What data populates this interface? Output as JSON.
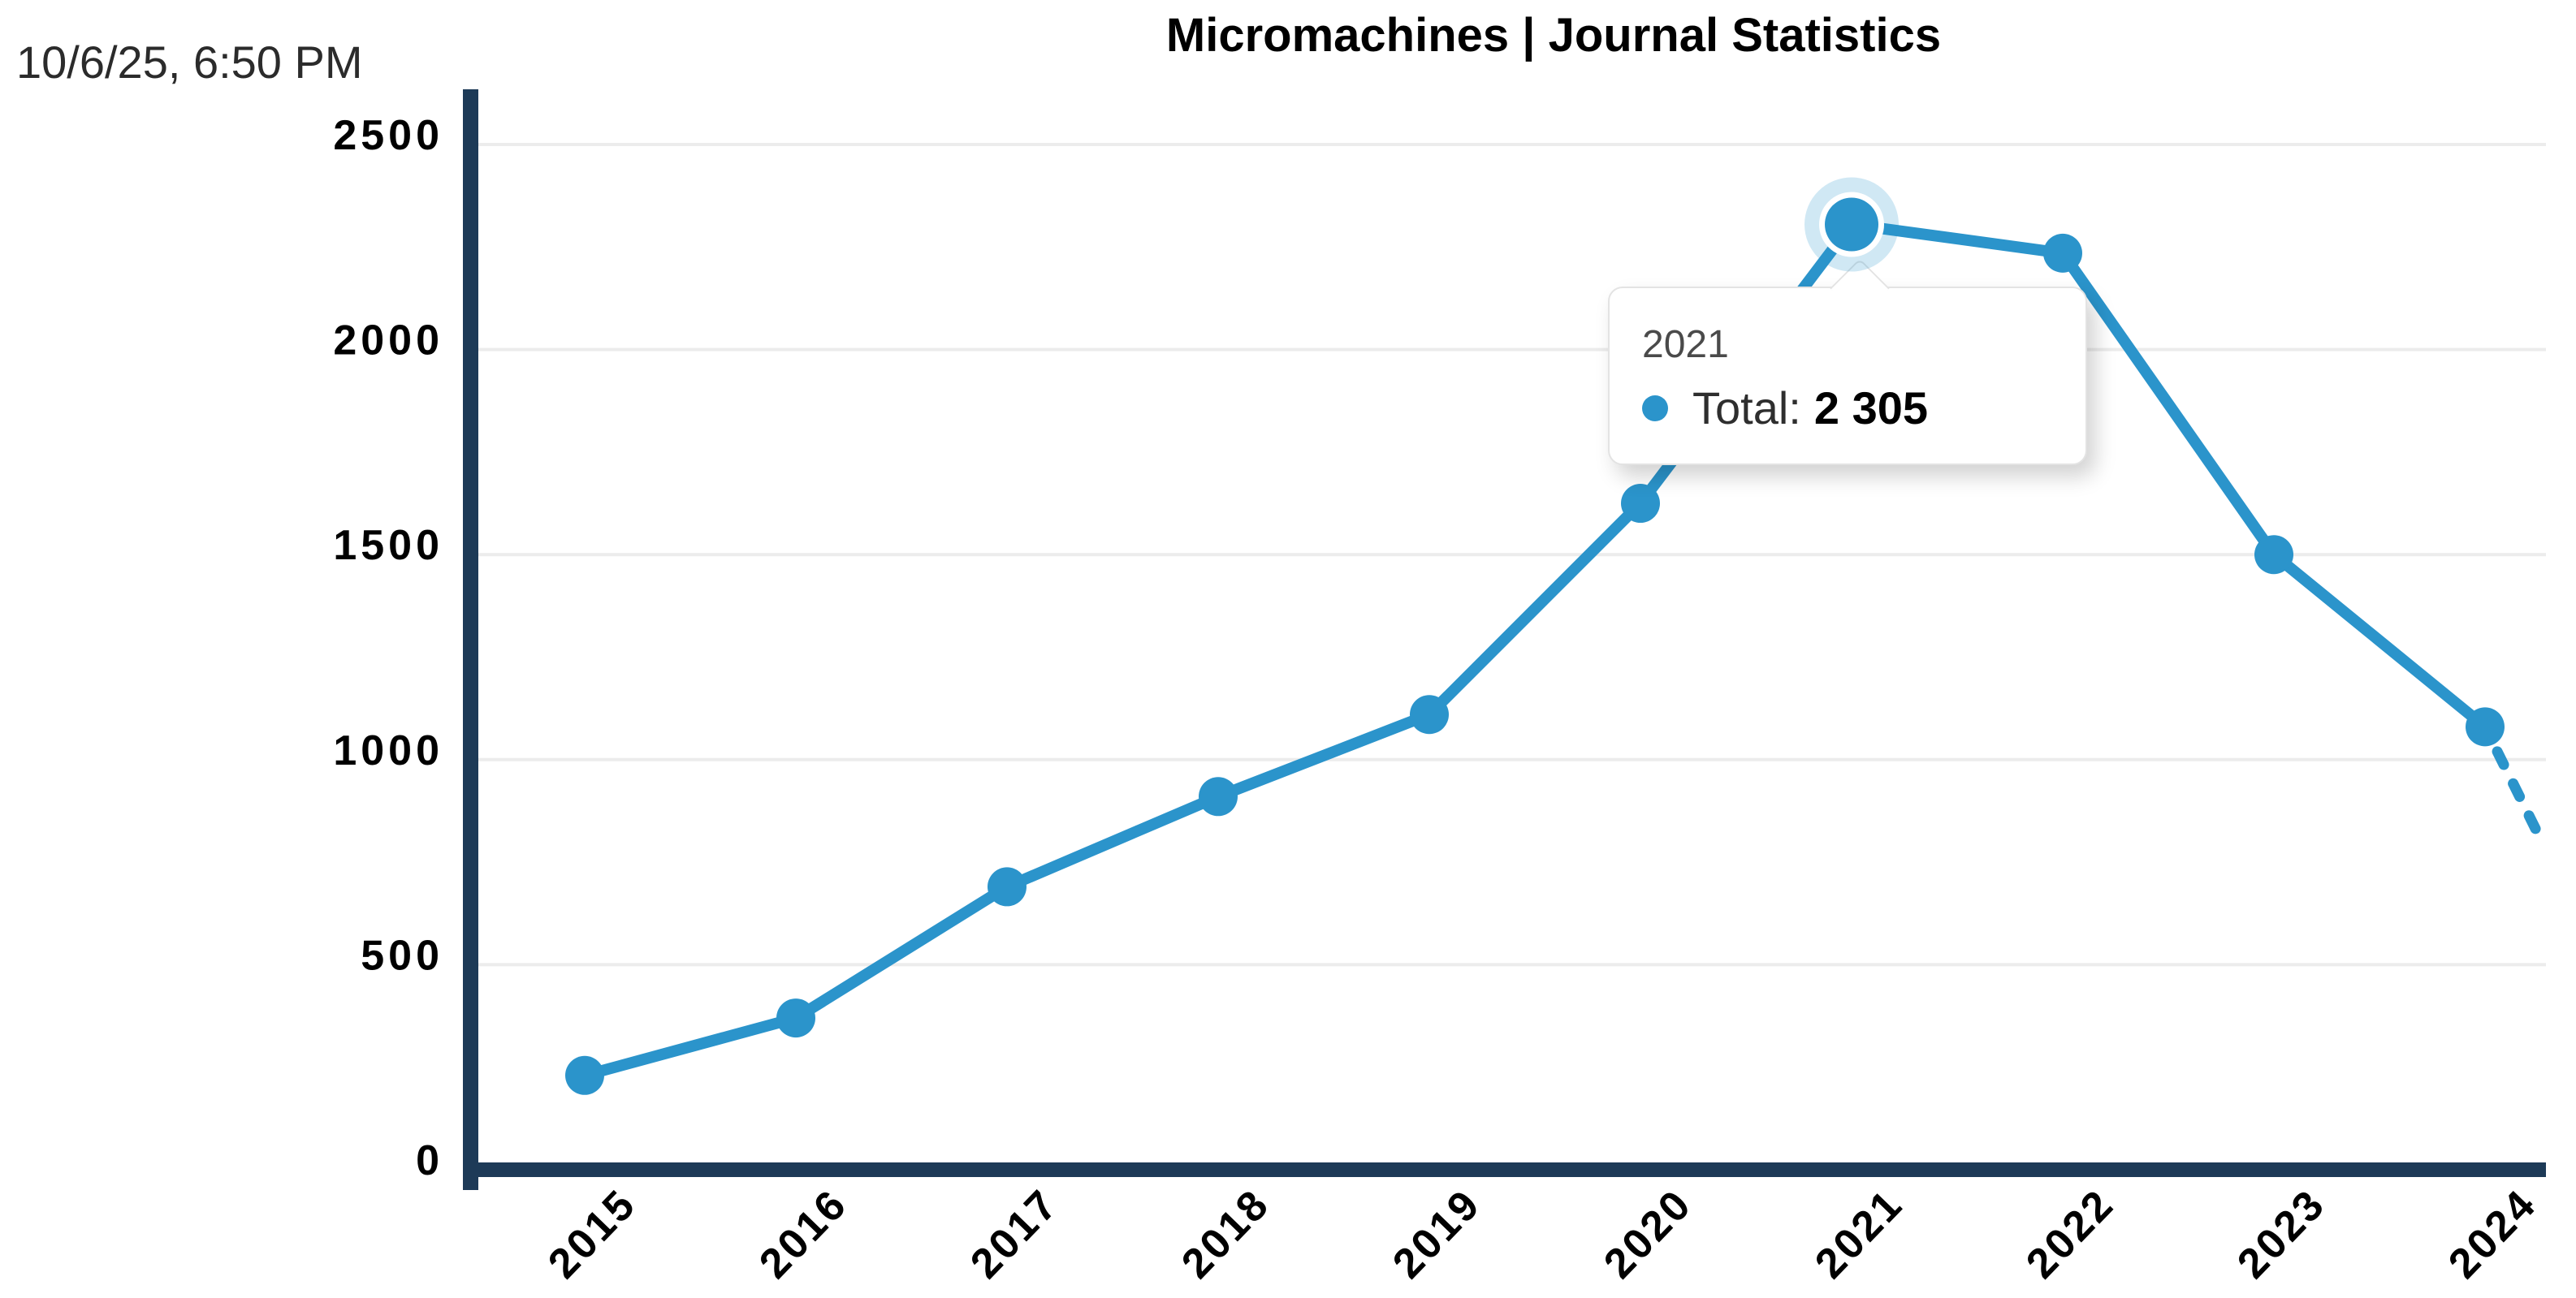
{
  "page": {
    "print_timestamp": "10/6/25, 6:50 PM"
  },
  "chart_data": {
    "type": "line",
    "title": "Micromachines | Journal Statistics",
    "categories": [
      "2015",
      "2016",
      "2017",
      "2018",
      "2019",
      "2020",
      "2021",
      "2022",
      "2023",
      "2024"
    ],
    "series": [
      {
        "name": "Total",
        "values": [
          230,
          370,
          690,
          910,
          1110,
          1625,
          2305,
          2235,
          1500,
          1080
        ]
      }
    ],
    "projection": {
      "from_category": "2024",
      "end_value": 820,
      "end_offset_fraction": 0.25,
      "style": "dashed"
    },
    "y_ticks": [
      0,
      500,
      1000,
      1500,
      2000,
      2500
    ],
    "ylim": [
      0,
      2500
    ],
    "xlabel": "",
    "ylabel": "",
    "grid": "horizontal-only",
    "legend_position": "none",
    "x_tick_rotation_deg": -46,
    "highlighted_point": {
      "category": "2021",
      "series": "Total",
      "value": 2305
    }
  },
  "tooltip": {
    "title": "2021",
    "series_label": "Total:",
    "value": "2 305"
  },
  "colors": {
    "series_line": "#2b94cb",
    "axis": "#1d3a57",
    "gridline": "#ececec",
    "halo": "rgba(43,148,203,0.22)",
    "background": "#ffffff",
    "title_text": "#000000",
    "tick_text": "#000000",
    "timestamp_text": "#2b2b2b",
    "tooltip_title_text": "#4a4a4a",
    "tooltip_label_text": "#2e2e2e",
    "tooltip_value_text": "#000000"
  }
}
